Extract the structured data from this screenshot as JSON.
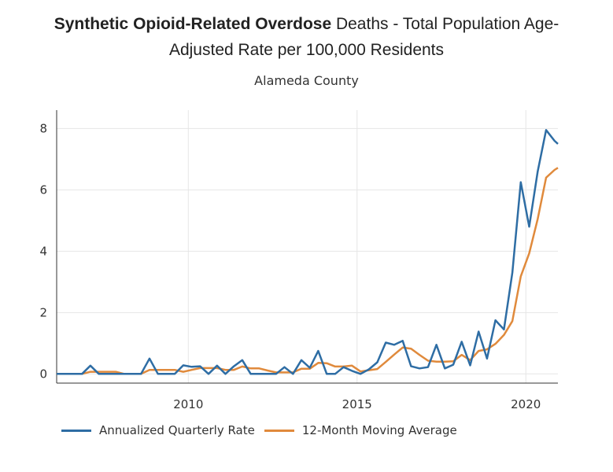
{
  "title": {
    "bold": "Synthetic Opioid-Related Overdose",
    "line1_rest": " Deaths - Total Population Age-",
    "line2": "Adjusted Rate per 100,000 Residents"
  },
  "subtitle": "Alameda County",
  "colors": {
    "quarterly": "#2e6da4",
    "moving_avg": "#e08a3c",
    "grid": "#e6e6e6",
    "axis": "#333333"
  },
  "chart_data": {
    "type": "line",
    "title": "Synthetic Opioid-Related Overdose Deaths - Total Population Age-Adjusted Rate per 100,000 Residents",
    "subtitle": "Alameda County",
    "xlim": [
      2006.1,
      2020.95
    ],
    "ylim": [
      -0.3,
      8.6
    ],
    "x_ticks": [
      2010,
      2015,
      2020
    ],
    "y_ticks": [
      0,
      2,
      4,
      6,
      8
    ],
    "grid": true,
    "legend_position": "bottom",
    "series": [
      {
        "name": "Annualized Quarterly Rate",
        "x": [
          2006.1,
          2006.35,
          2006.6,
          2006.85,
          2007.1,
          2007.35,
          2007.6,
          2007.85,
          2008.1,
          2008.35,
          2008.6,
          2008.85,
          2009.1,
          2009.35,
          2009.6,
          2009.85,
          2010.1,
          2010.35,
          2010.6,
          2010.85,
          2011.1,
          2011.35,
          2011.6,
          2011.85,
          2012.1,
          2012.35,
          2012.6,
          2012.85,
          2013.1,
          2013.35,
          2013.6,
          2013.85,
          2014.1,
          2014.35,
          2014.6,
          2014.85,
          2015.1,
          2015.35,
          2015.6,
          2015.85,
          2016.1,
          2016.35,
          2016.6,
          2016.85,
          2017.1,
          2017.35,
          2017.6,
          2017.85,
          2018.1,
          2018.35,
          2018.6,
          2018.85,
          2019.1,
          2019.35,
          2019.6,
          2019.85,
          2020.1,
          2020.35,
          2020.6,
          2020.85,
          2020.95
        ],
        "values": [
          0,
          0,
          0,
          0,
          0.27,
          0,
          0,
          0,
          0,
          0,
          0,
          0.5,
          0,
          0,
          0,
          0.28,
          0.23,
          0.25,
          0,
          0.27,
          0,
          0.25,
          0.45,
          0,
          0,
          0,
          0,
          0.22,
          0,
          0.45,
          0.2,
          0.75,
          0,
          0,
          0.22,
          0.1,
          0,
          0.15,
          0.38,
          1.02,
          0.95,
          1.08,
          0.25,
          0.18,
          0.22,
          0.95,
          0.18,
          0.3,
          1.05,
          0.28,
          1.38,
          0.5,
          1.75,
          1.45,
          3.3,
          6.25,
          4.8,
          6.6,
          7.95,
          7.6,
          7.5
        ]
      },
      {
        "name": "12-Month Moving Average",
        "x": [
          2006.1,
          2006.35,
          2006.6,
          2006.85,
          2007.1,
          2007.35,
          2007.6,
          2007.85,
          2008.1,
          2008.35,
          2008.6,
          2008.85,
          2009.1,
          2009.35,
          2009.6,
          2009.85,
          2010.1,
          2010.35,
          2010.6,
          2010.85,
          2011.1,
          2011.35,
          2011.6,
          2011.85,
          2012.1,
          2012.35,
          2012.6,
          2012.85,
          2013.1,
          2013.35,
          2013.6,
          2013.85,
          2014.1,
          2014.35,
          2014.6,
          2014.85,
          2015.1,
          2015.35,
          2015.6,
          2015.85,
          2016.1,
          2016.35,
          2016.6,
          2016.85,
          2017.1,
          2017.35,
          2017.6,
          2017.85,
          2018.1,
          2018.35,
          2018.6,
          2018.85,
          2019.1,
          2019.35,
          2019.6,
          2019.85,
          2020.1,
          2020.35,
          2020.6,
          2020.85,
          2020.95
        ],
        "values": [
          0,
          0,
          0,
          0,
          0.07,
          0.07,
          0.07,
          0.07,
          0,
          0,
          0,
          0.13,
          0.13,
          0.13,
          0.13,
          0.07,
          0.13,
          0.19,
          0.19,
          0.19,
          0.13,
          0.13,
          0.24,
          0.18,
          0.18,
          0.11,
          0.05,
          0.05,
          0.05,
          0.17,
          0.17,
          0.36,
          0.35,
          0.24,
          0.24,
          0.27,
          0.08,
          0.12,
          0.16,
          0.39,
          0.63,
          0.86,
          0.82,
          0.62,
          0.43,
          0.4,
          0.4,
          0.41,
          0.62,
          0.45,
          0.75,
          0.8,
          0.98,
          1.27,
          1.72,
          3.18,
          3.93,
          5.05,
          6.4,
          6.65,
          6.72
        ]
      }
    ],
    "legend": [
      "Annualized Quarterly Rate",
      "12-Month Moving Average"
    ]
  }
}
